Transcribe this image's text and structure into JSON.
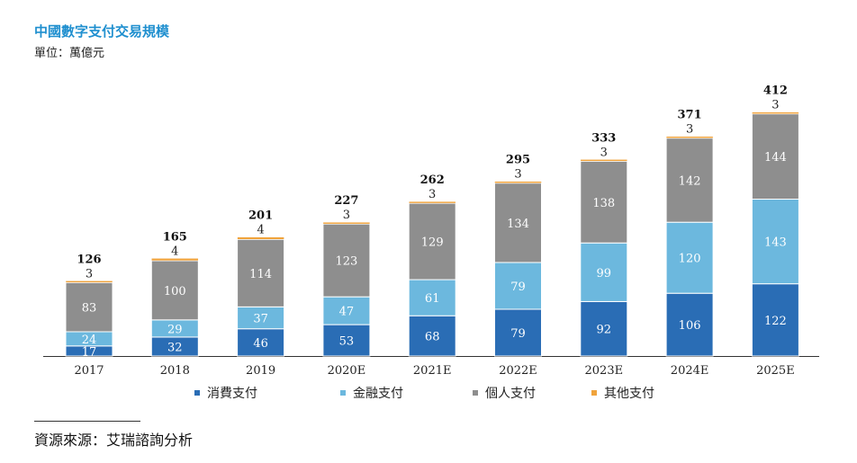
{
  "header": {
    "title": "中國數字支付交易規模",
    "unit": "單位：萬億元"
  },
  "footer": {
    "source": "資源來源：艾瑞諮詢分析"
  },
  "colors": {
    "consumer": "#2a6db5",
    "financial": "#6cb8de",
    "personal": "#8e8e8e",
    "other": "#f0a33c",
    "axis": "#333333"
  },
  "chart_data": {
    "type": "bar",
    "stacked": true,
    "categories": [
      "2017",
      "2018",
      "2019",
      "2020E",
      "2021E",
      "2022E",
      "2023E",
      "2024E",
      "2025E"
    ],
    "series": [
      {
        "name": "消費支付",
        "values": [
          17,
          32,
          46,
          53,
          68,
          79,
          92,
          106,
          122
        ]
      },
      {
        "name": "金融支付",
        "values": [
          24,
          29,
          37,
          47,
          61,
          79,
          99,
          120,
          143
        ]
      },
      {
        "name": "個人支付",
        "values": [
          83,
          100,
          114,
          123,
          129,
          134,
          138,
          142,
          144
        ]
      },
      {
        "name": "其他支付",
        "values": [
          3,
          4,
          4,
          3,
          3,
          3,
          3,
          3,
          3
        ]
      }
    ],
    "totals": [
      126,
      165,
      201,
      227,
      262,
      295,
      333,
      371,
      412
    ],
    "legend_position": "bottom",
    "grid": false
  }
}
